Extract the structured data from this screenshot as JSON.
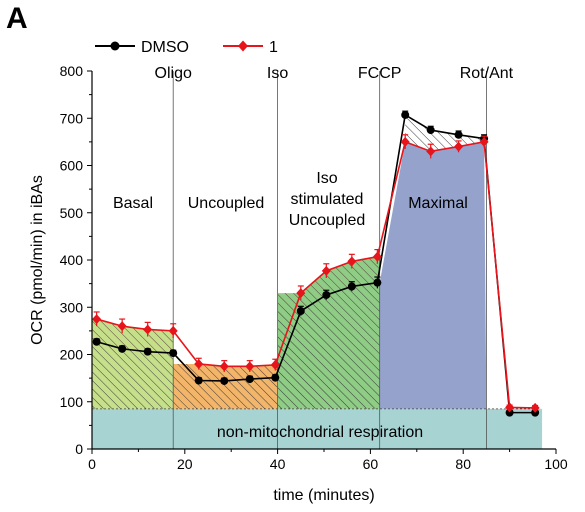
{
  "panel_label": "A",
  "chart_data": {
    "type": "line",
    "xlabel": "time (minutes)",
    "ylabel": "OCR (pmol/min) in iBAs",
    "xlim": [
      0,
      100
    ],
    "ylim": [
      0,
      800
    ],
    "xticks": [
      0,
      20,
      40,
      60,
      80,
      100
    ],
    "yticks": [
      0,
      100,
      200,
      300,
      400,
      500,
      600,
      700,
      800
    ],
    "legend": {
      "placement": "top-left"
    },
    "injections": [
      {
        "label": "Oligo",
        "x": 17.5
      },
      {
        "label": "Iso",
        "x": 40
      },
      {
        "label": "FCCP",
        "x": 62
      },
      {
        "label": "Rot/Ant",
        "x": 85
      }
    ],
    "region_labels": [
      {
        "lines": [
          "Basal"
        ]
      },
      {
        "lines": [
          "Uncoupled"
        ]
      },
      {
        "lines": [
          "Iso",
          "stimulated",
          "Uncoupled"
        ]
      },
      {
        "lines": [
          "Maximal"
        ]
      },
      {
        "lines": [
          "non-mitochondrial respiration"
        ]
      }
    ],
    "non_mito_level": 85,
    "series": [
      {
        "name": "DMSO",
        "color": "#000000",
        "marker": "circle",
        "x": [
          1,
          6.5,
          12,
          17.5,
          23,
          28.5,
          34,
          39.5,
          45,
          50.5,
          56,
          61.5,
          67.5,
          73,
          79,
          84.5,
          90,
          95.5
        ],
        "y": [
          227,
          212,
          206,
          203,
          145,
          144,
          148,
          151,
          292,
          326,
          344,
          352,
          707,
          675,
          665,
          657,
          77,
          77
        ],
        "err": [
          6,
          6,
          6,
          6,
          6,
          6,
          6,
          6,
          10,
          10,
          10,
          12,
          8,
          8,
          8,
          8,
          4,
          4
        ]
      },
      {
        "name": "1",
        "color": "#e8141b",
        "marker": "diamond",
        "x": [
          1,
          6.5,
          12,
          17.5,
          23,
          28.5,
          34,
          39.5,
          45,
          50.5,
          56,
          61.5,
          67.5,
          73,
          79,
          84.5,
          90,
          95.5
        ],
        "y": [
          275,
          260,
          253,
          250,
          180,
          175,
          175,
          178,
          330,
          377,
          397,
          407,
          650,
          630,
          640,
          650,
          88,
          87
        ],
        "err": [
          15,
          15,
          15,
          15,
          12,
          12,
          12,
          12,
          15,
          15,
          15,
          15,
          15,
          15,
          12,
          12,
          5,
          5
        ]
      }
    ]
  }
}
